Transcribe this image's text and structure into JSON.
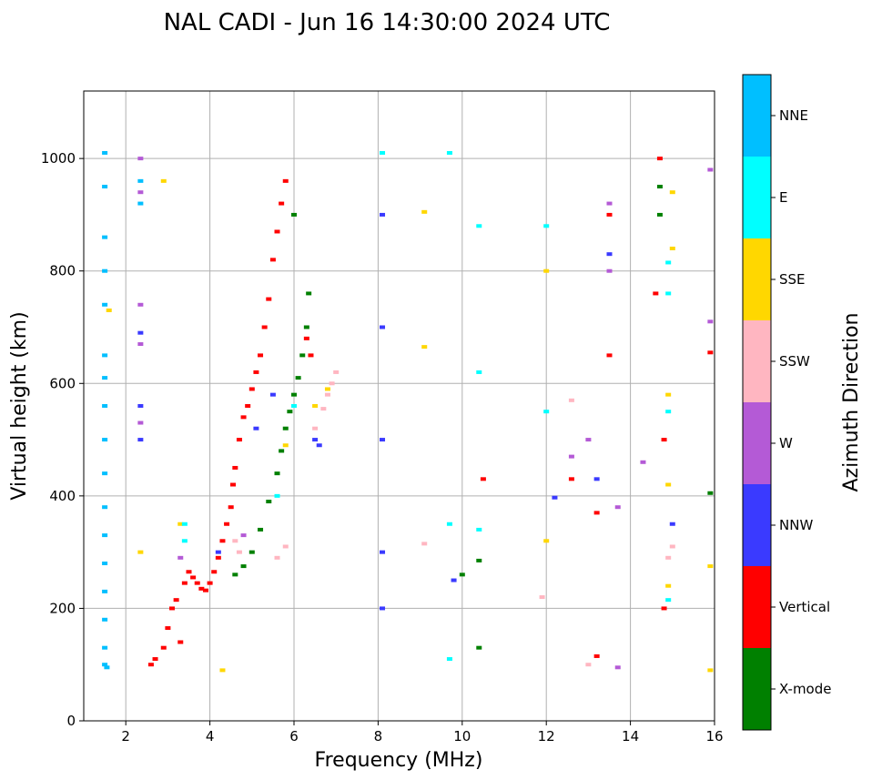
{
  "chart_data": {
    "type": "scatter",
    "title": "NAL CADI - Jun 16 14:30:00 2024 UTC",
    "xlabel": "Frequency (MHz)",
    "ylabel": "Virtual height (km)",
    "xlim": [
      1.0,
      16.0
    ],
    "ylim": [
      0,
      1120
    ],
    "xticks": [
      2,
      4,
      6,
      8,
      10,
      12,
      14,
      16
    ],
    "yticks": [
      0,
      200,
      400,
      600,
      800,
      1000
    ],
    "grid": true,
    "colorbar": {
      "label": "Azimuth Direction",
      "categories": [
        "X-mode",
        "Vertical",
        "NNW",
        "W",
        "SSW",
        "SSE",
        "E",
        "NNE"
      ],
      "colors": [
        "#008000",
        "#ff0000",
        "#3a3aff",
        "#b45ad6",
        "#ffb6c1",
        "#ffd700",
        "#00ffff",
        "#00bfff"
      ]
    },
    "series": [
      {
        "name": "Vertical",
        "points": [
          [
            2.6,
            100
          ],
          [
            2.7,
            110
          ],
          [
            2.9,
            130
          ],
          [
            3.0,
            165
          ],
          [
            3.1,
            200
          ],
          [
            3.2,
            215
          ],
          [
            3.3,
            140
          ],
          [
            3.4,
            245
          ],
          [
            3.5,
            265
          ],
          [
            3.6,
            255
          ],
          [
            3.7,
            245
          ],
          [
            3.8,
            235
          ],
          [
            3.9,
            232
          ],
          [
            4.0,
            245
          ],
          [
            4.1,
            265
          ],
          [
            4.2,
            290
          ],
          [
            4.3,
            320
          ],
          [
            4.4,
            350
          ],
          [
            4.5,
            380
          ],
          [
            4.55,
            420
          ],
          [
            4.6,
            450
          ],
          [
            4.7,
            500
          ],
          [
            4.8,
            540
          ],
          [
            4.9,
            560
          ],
          [
            5.0,
            590
          ],
          [
            5.1,
            620
          ],
          [
            5.2,
            650
          ],
          [
            5.3,
            700
          ],
          [
            5.4,
            750
          ],
          [
            5.5,
            820
          ],
          [
            5.6,
            870
          ],
          [
            5.7,
            920
          ],
          [
            5.8,
            960
          ],
          [
            6.3,
            680
          ],
          [
            6.4,
            650
          ],
          [
            13.2,
            115
          ],
          [
            13.2,
            370
          ],
          [
            13.5,
            650
          ],
          [
            13.5,
            900
          ],
          [
            14.6,
            760
          ],
          [
            14.7,
            1000
          ],
          [
            14.8,
            200
          ],
          [
            14.8,
            500
          ],
          [
            15.9,
            655
          ],
          [
            12.6,
            430
          ],
          [
            10.5,
            430
          ]
        ]
      },
      {
        "name": "X-mode",
        "points": [
          [
            4.6,
            260
          ],
          [
            4.8,
            275
          ],
          [
            5.0,
            300
          ],
          [
            5.2,
            340
          ],
          [
            5.4,
            390
          ],
          [
            5.6,
            440
          ],
          [
            5.7,
            480
          ],
          [
            5.8,
            520
          ],
          [
            5.9,
            550
          ],
          [
            6.0,
            580
          ],
          [
            6.1,
            610
          ],
          [
            6.2,
            650
          ],
          [
            6.3,
            700
          ],
          [
            6.35,
            760
          ],
          [
            6.0,
            900
          ],
          [
            14.7,
            900
          ],
          [
            14.7,
            950
          ],
          [
            10.4,
            130
          ],
          [
            10.4,
            285
          ],
          [
            15.9,
            405
          ],
          [
            10.0,
            260
          ]
        ]
      },
      {
        "name": "NNW",
        "points": [
          [
            2.35,
            500
          ],
          [
            2.35,
            560
          ],
          [
            2.35,
            690
          ],
          [
            4.2,
            300
          ],
          [
            5.1,
            520
          ],
          [
            5.5,
            580
          ],
          [
            6.5,
            500
          ],
          [
            6.6,
            490
          ],
          [
            8.1,
            900
          ],
          [
            8.1,
            700
          ],
          [
            8.1,
            500
          ],
          [
            8.1,
            300
          ],
          [
            8.1,
            200
          ],
          [
            9.8,
            250
          ],
          [
            13.2,
            430
          ],
          [
            12.2,
            397
          ],
          [
            13.5,
            830
          ],
          [
            15.0,
            350
          ]
        ]
      },
      {
        "name": "W",
        "points": [
          [
            2.35,
            1000
          ],
          [
            2.35,
            940
          ],
          [
            2.35,
            740
          ],
          [
            2.35,
            670
          ],
          [
            2.35,
            530
          ],
          [
            3.3,
            290
          ],
          [
            4.8,
            330
          ],
          [
            12.6,
            470
          ],
          [
            13.0,
            500
          ],
          [
            13.5,
            800
          ],
          [
            13.5,
            920
          ],
          [
            14.3,
            460
          ],
          [
            15.9,
            980
          ],
          [
            15.9,
            710
          ],
          [
            13.7,
            380
          ],
          [
            13.7,
            95
          ]
        ]
      },
      {
        "name": "SSW",
        "points": [
          [
            5.6,
            290
          ],
          [
            5.8,
            310
          ],
          [
            6.5,
            520
          ],
          [
            6.7,
            555
          ],
          [
            6.8,
            580
          ],
          [
            6.9,
            600
          ],
          [
            7.0,
            620
          ],
          [
            4.6,
            320
          ],
          [
            4.7,
            300
          ],
          [
            12.6,
            570
          ],
          [
            14.9,
            290
          ],
          [
            15.0,
            310
          ],
          [
            13.0,
            100
          ],
          [
            11.9,
            220
          ],
          [
            9.1,
            315
          ]
        ]
      },
      {
        "name": "SSE",
        "points": [
          [
            1.6,
            730
          ],
          [
            2.35,
            300
          ],
          [
            2.9,
            960
          ],
          [
            3.3,
            350
          ],
          [
            5.8,
            490
          ],
          [
            6.5,
            560
          ],
          [
            6.8,
            590
          ],
          [
            9.1,
            905
          ],
          [
            9.1,
            665
          ],
          [
            14.9,
            420
          ],
          [
            14.9,
            240
          ],
          [
            14.9,
            580
          ],
          [
            15.0,
            940
          ],
          [
            15.0,
            840
          ],
          [
            15.9,
            275
          ],
          [
            15.9,
            90
          ],
          [
            12.0,
            800
          ],
          [
            4.3,
            90
          ],
          [
            12.0,
            320
          ]
        ]
      },
      {
        "name": "E",
        "points": [
          [
            3.4,
            350
          ],
          [
            3.4,
            320
          ],
          [
            5.6,
            400
          ],
          [
            6.0,
            560
          ],
          [
            8.1,
            1010
          ],
          [
            9.7,
            1010
          ],
          [
            10.4,
            880
          ],
          [
            10.4,
            620
          ],
          [
            10.4,
            340
          ],
          [
            12.0,
            880
          ],
          [
            12.0,
            550
          ],
          [
            14.9,
            550
          ],
          [
            14.9,
            815
          ],
          [
            14.9,
            760
          ],
          [
            14.9,
            215
          ],
          [
            9.7,
            350
          ],
          [
            9.7,
            110
          ]
        ]
      },
      {
        "name": "NNE",
        "points": [
          [
            1.5,
            1010
          ],
          [
            1.5,
            950
          ],
          [
            1.5,
            860
          ],
          [
            1.5,
            800
          ],
          [
            1.5,
            740
          ],
          [
            1.5,
            650
          ],
          [
            1.5,
            610
          ],
          [
            1.5,
            560
          ],
          [
            1.5,
            500
          ],
          [
            1.5,
            440
          ],
          [
            1.5,
            380
          ],
          [
            1.5,
            330
          ],
          [
            1.5,
            280
          ],
          [
            1.5,
            230
          ],
          [
            1.5,
            180
          ],
          [
            1.5,
            130
          ],
          [
            1.5,
            100
          ],
          [
            1.55,
            95
          ],
          [
            2.35,
            960
          ],
          [
            2.35,
            920
          ]
        ]
      }
    ]
  }
}
